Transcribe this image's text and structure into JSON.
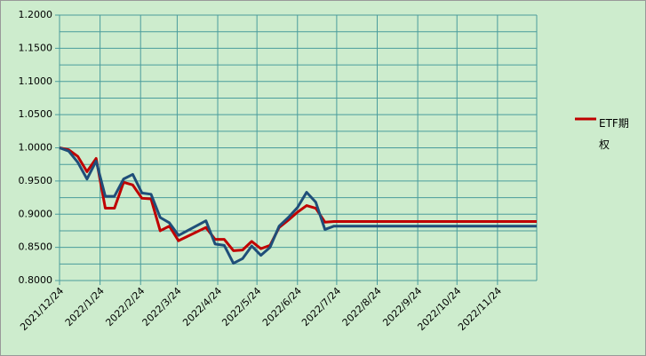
{
  "chart_data": {
    "type": "line",
    "x": [
      "2021/12/24",
      "2021/12/31",
      "2022/1/7",
      "2022/1/14",
      "2022/1/21",
      "2022/1/28",
      "2022/2/4",
      "2022/2/11",
      "2022/2/18",
      "2022/2/25",
      "2022/3/4",
      "2022/3/11",
      "2022/3/18",
      "2022/3/25",
      "2022/4/15",
      "2022/4/22",
      "2022/4/29",
      "2022/5/6",
      "2022/5/13",
      "2022/5/20",
      "2022/5/27",
      "2022/6/3",
      "2022/6/10",
      "2022/6/17",
      "2022/6/24",
      "2022/7/1",
      "2022/7/8",
      "2022/7/15",
      "2022/7/22",
      "2022/12/24"
    ],
    "series": [
      {
        "name": "ETF期权",
        "color": "#c00000",
        "values": [
          1.0,
          0.997,
          0.987,
          0.964,
          0.984,
          0.909,
          0.909,
          0.948,
          0.944,
          0.924,
          0.923,
          0.875,
          0.882,
          0.86,
          0.88,
          0.862,
          0.862,
          0.845,
          0.846,
          0.859,
          0.848,
          0.853,
          0.88,
          0.891,
          0.903,
          0.913,
          0.909,
          0.888,
          0.889,
          0.889
        ]
      },
      {
        "color": "#1f4e79",
        "values": [
          1.0,
          0.995,
          0.978,
          0.953,
          0.98,
          0.927,
          0.927,
          0.953,
          0.96,
          0.932,
          0.93,
          0.895,
          0.887,
          0.868,
          0.89,
          0.855,
          0.853,
          0.826,
          0.833,
          0.852,
          0.838,
          0.85,
          0.882,
          0.895,
          0.91,
          0.933,
          0.918,
          0.877,
          0.882,
          0.882
        ]
      }
    ],
    "xlim": [
      "2021/12/24",
      "2022/12/24"
    ],
    "xticks": [
      "2021/12/24",
      "2022/1/24",
      "2022/2/24",
      "2022/3/24",
      "2022/4/24",
      "2022/5/24",
      "2022/6/24",
      "2022/7/24",
      "2022/8/24",
      "2022/9/24",
      "2022/10/24",
      "2022/11/24"
    ],
    "ylim": [
      0.8,
      1.2
    ],
    "yticks": [
      {
        "value": 0.8,
        "label": "0.8000"
      },
      {
        "value": 0.85,
        "label": "0.8500"
      },
      {
        "value": 0.9,
        "label": "0.9000"
      },
      {
        "value": 0.95,
        "label": "0.9500"
      },
      {
        "value": 1.0,
        "label": "1.0000"
      },
      {
        "value": 1.05,
        "label": "1.0500"
      },
      {
        "value": 1.1,
        "label": "1.1000"
      },
      {
        "value": 1.15,
        "label": "1.1500"
      },
      {
        "value": 1.2,
        "label": "1.2000"
      }
    ],
    "yminorticks": [
      0.825,
      0.875,
      0.925,
      0.975,
      1.025,
      1.075,
      1.125,
      1.175
    ],
    "grid": true
  }
}
